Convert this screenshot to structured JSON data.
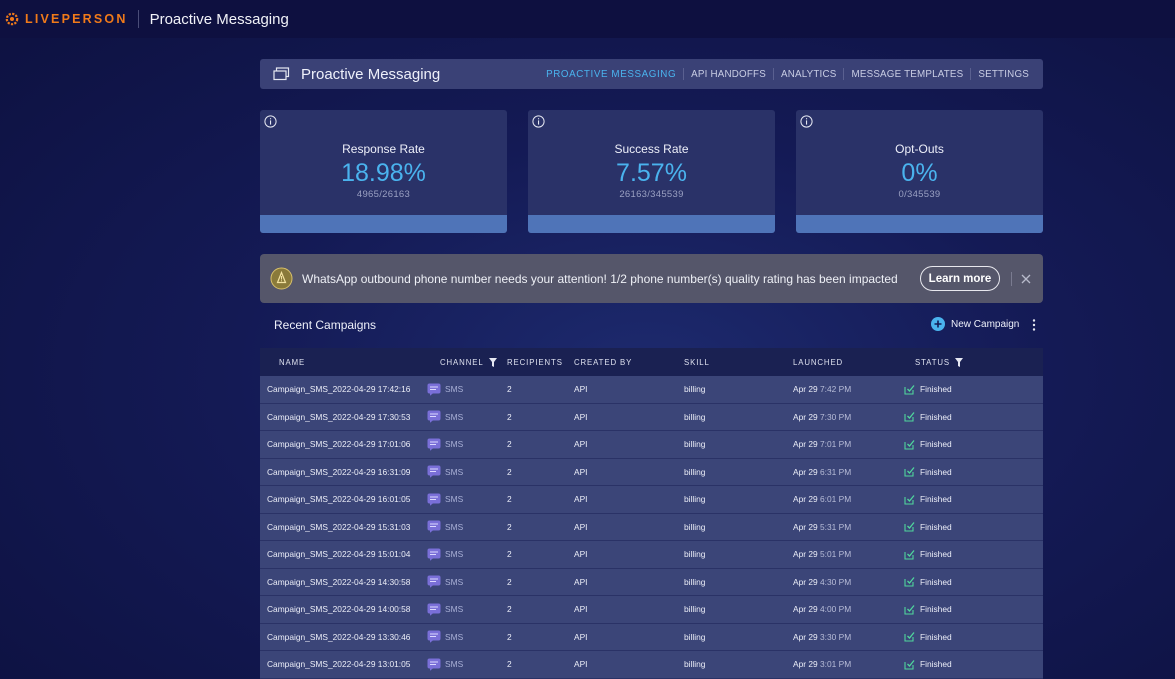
{
  "topbar": {
    "logo_text": "LIVEPERSON",
    "app_title": "Proactive Messaging"
  },
  "header": {
    "title": "Proactive Messaging",
    "nav": [
      {
        "label": "PROACTIVE MESSAGING",
        "active": true
      },
      {
        "label": "API HANDOFFS"
      },
      {
        "label": "ANALYTICS"
      },
      {
        "label": "MESSAGE TEMPLATES"
      },
      {
        "label": "SETTINGS"
      }
    ]
  },
  "stats": [
    {
      "label": "Response Rate",
      "value": "18.98%",
      "sub": "4965/26163"
    },
    {
      "label": "Success Rate",
      "value": "7.57%",
      "sub": "26163/345539"
    },
    {
      "label": "Opt-Outs",
      "value": "0%",
      "sub": "0/345539"
    }
  ],
  "alert": {
    "text": "WhatsApp outbound phone number needs your attention! 1/2 phone number(s) quality rating has been impacted",
    "button": "Learn more"
  },
  "campaigns": {
    "title": "Recent Campaigns",
    "new_button": "New Campaign",
    "columns": [
      "NAME",
      "CHANNEL",
      "RECIPIENTS",
      "CREATED BY",
      "SKILL",
      "LAUNCHED",
      "STATUS"
    ],
    "rows": [
      {
        "name": "Campaign_SMS_2022-04-29 17:42:16",
        "channel": "SMS",
        "recipients": "2",
        "created_by": "API",
        "skill": "billing",
        "launched_date": "Apr 29",
        "launched_time": "7:42 PM",
        "status": "Finished"
      },
      {
        "name": "Campaign_SMS_2022-04-29 17:30:53",
        "channel": "SMS",
        "recipients": "2",
        "created_by": "API",
        "skill": "billing",
        "launched_date": "Apr 29",
        "launched_time": "7:30 PM",
        "status": "Finished"
      },
      {
        "name": "Campaign_SMS_2022-04-29 17:01:06",
        "channel": "SMS",
        "recipients": "2",
        "created_by": "API",
        "skill": "billing",
        "launched_date": "Apr 29",
        "launched_time": "7:01 PM",
        "status": "Finished"
      },
      {
        "name": "Campaign_SMS_2022-04-29 16:31:09",
        "channel": "SMS",
        "recipients": "2",
        "created_by": "API",
        "skill": "billing",
        "launched_date": "Apr 29",
        "launched_time": "6:31 PM",
        "status": "Finished"
      },
      {
        "name": "Campaign_SMS_2022-04-29 16:01:05",
        "channel": "SMS",
        "recipients": "2",
        "created_by": "API",
        "skill": "billing",
        "launched_date": "Apr 29",
        "launched_time": "6:01 PM",
        "status": "Finished"
      },
      {
        "name": "Campaign_SMS_2022-04-29 15:31:03",
        "channel": "SMS",
        "recipients": "2",
        "created_by": "API",
        "skill": "billing",
        "launched_date": "Apr 29",
        "launched_time": "5:31 PM",
        "status": "Finished"
      },
      {
        "name": "Campaign_SMS_2022-04-29 15:01:04",
        "channel": "SMS",
        "recipients": "2",
        "created_by": "API",
        "skill": "billing",
        "launched_date": "Apr 29",
        "launched_time": "5:01 PM",
        "status": "Finished"
      },
      {
        "name": "Campaign_SMS_2022-04-29 14:30:58",
        "channel": "SMS",
        "recipients": "2",
        "created_by": "API",
        "skill": "billing",
        "launched_date": "Apr 29",
        "launched_time": "4:30 PM",
        "status": "Finished"
      },
      {
        "name": "Campaign_SMS_2022-04-29 14:00:58",
        "channel": "SMS",
        "recipients": "2",
        "created_by": "API",
        "skill": "billing",
        "launched_date": "Apr 29",
        "launched_time": "4:00 PM",
        "status": "Finished"
      },
      {
        "name": "Campaign_SMS_2022-04-29 13:30:46",
        "channel": "SMS",
        "recipients": "2",
        "created_by": "API",
        "skill": "billing",
        "launched_date": "Apr 29",
        "launched_time": "3:30 PM",
        "status": "Finished"
      },
      {
        "name": "Campaign_SMS_2022-04-29 13:01:05",
        "channel": "SMS",
        "recipients": "2",
        "created_by": "API",
        "skill": "billing",
        "launched_date": "Apr 29",
        "launched_time": "3:01 PM",
        "status": "Finished"
      }
    ]
  },
  "colors": {
    "accent": "#4ab3ee",
    "brand": "#f07a1a",
    "status_ok": "#4fd69c"
  }
}
